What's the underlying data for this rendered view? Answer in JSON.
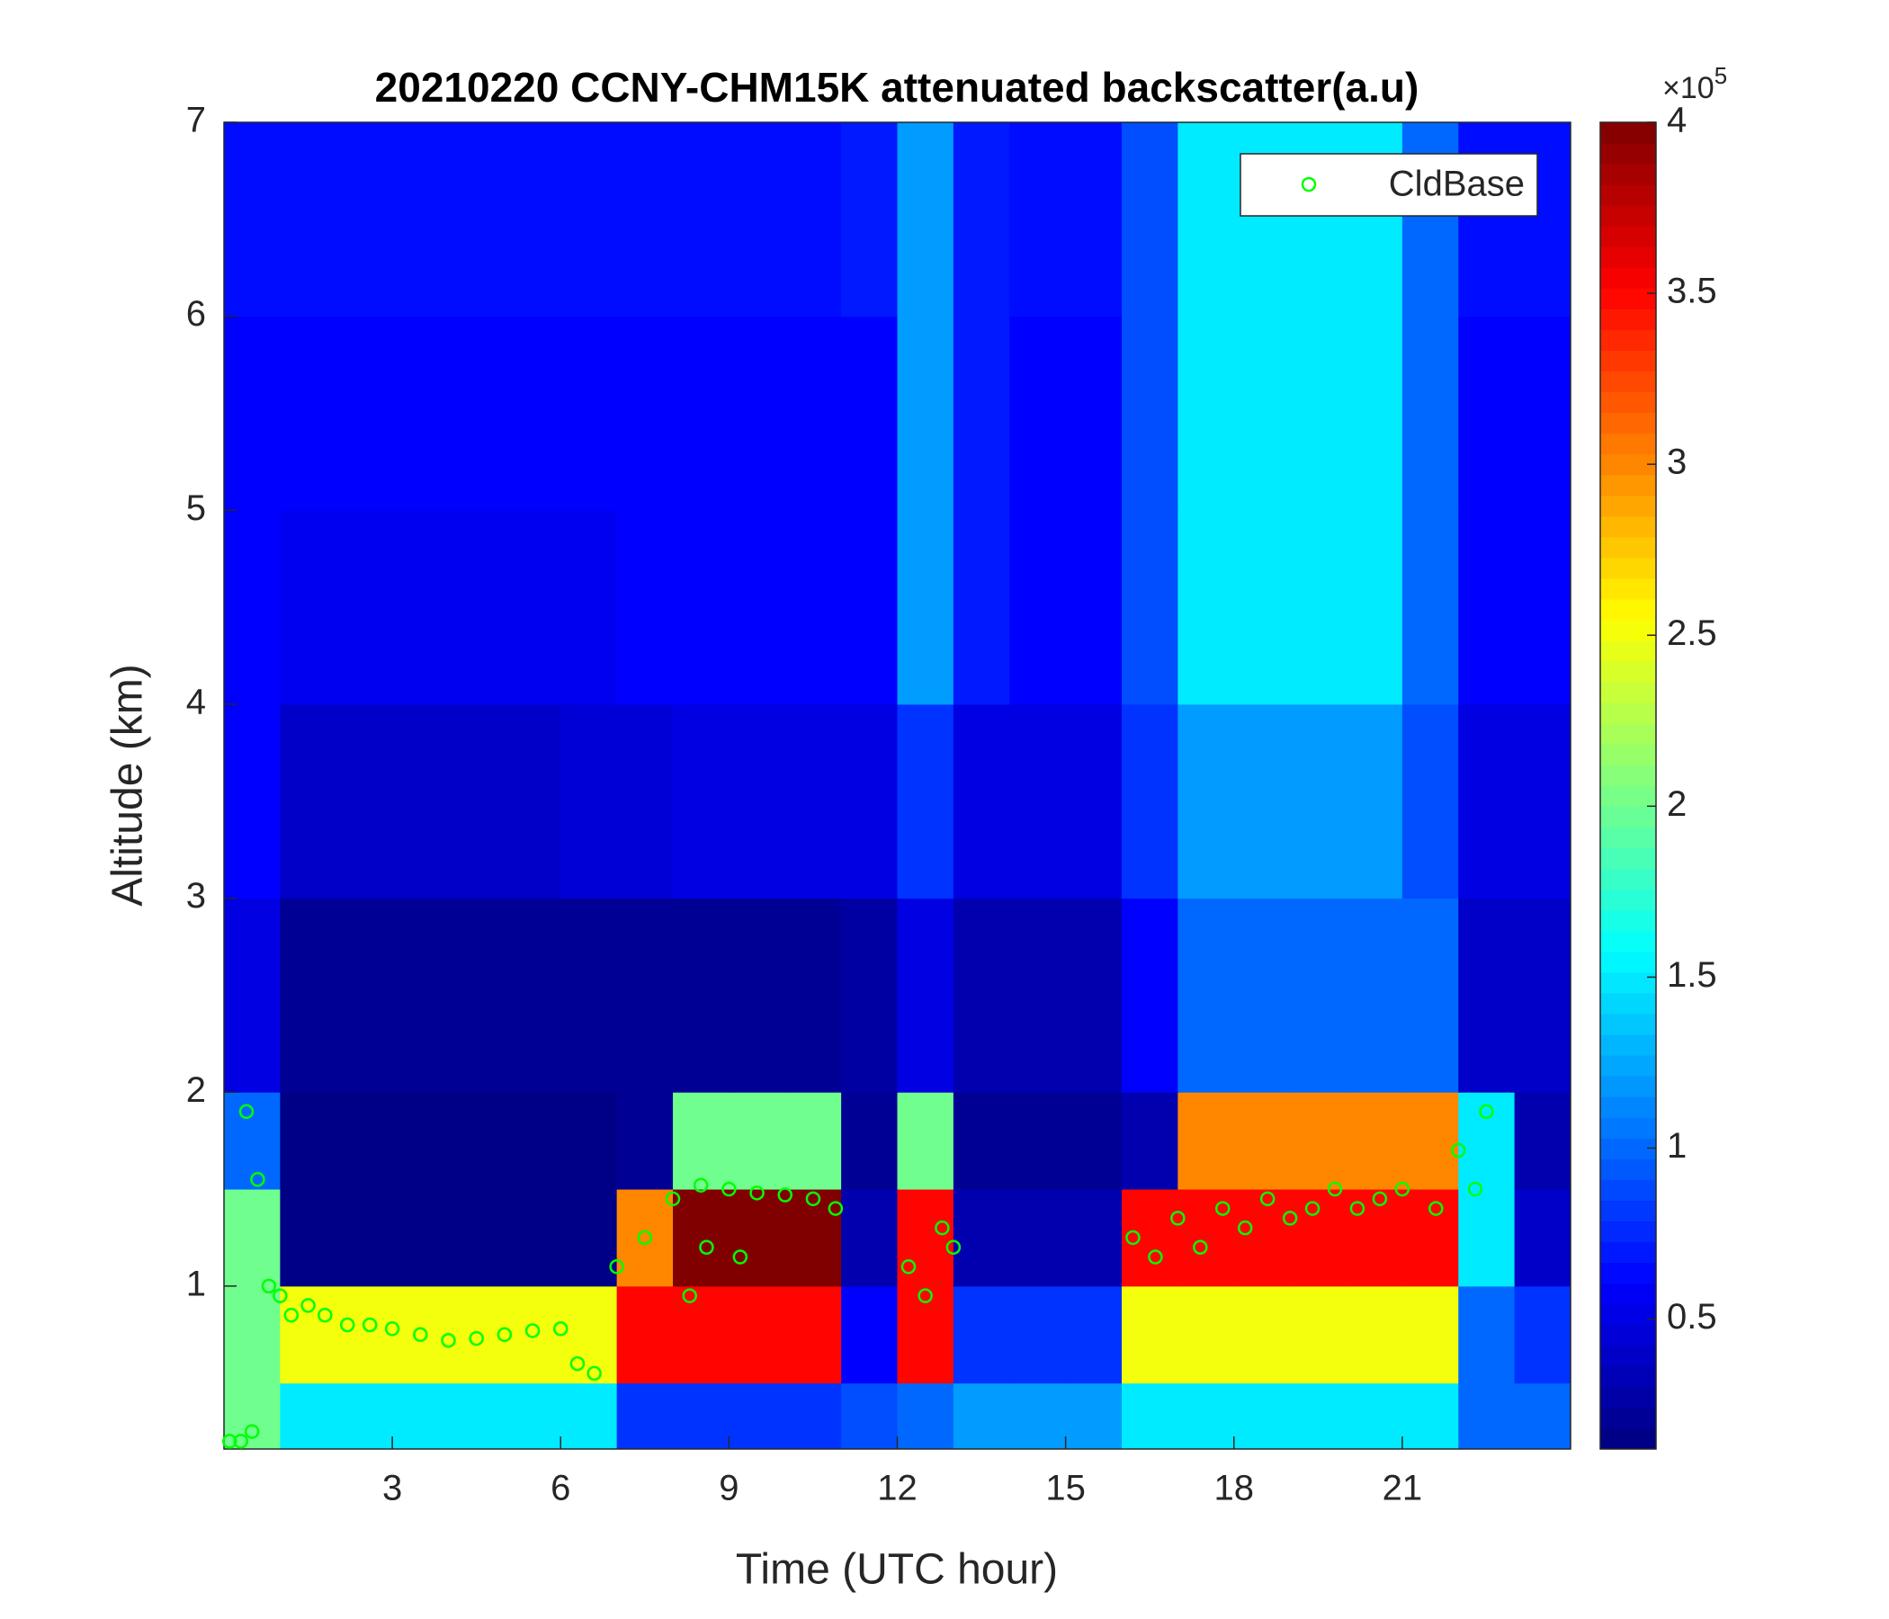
{
  "chart_data": {
    "type": "heatmap",
    "title": "20210220 CCNY-CHM15K attenuated backscatter(a.u)",
    "x_label": "Time (UTC hour)",
    "y_label": "Altitude (km)",
    "xlim": [
      0,
      24
    ],
    "ylim": [
      0.16,
      7
    ],
    "xticks": [
      3,
      6,
      9,
      12,
      15,
      18,
      21
    ],
    "yticks": [
      1,
      2,
      3,
      4,
      5,
      6,
      7
    ],
    "x_edges": [
      0,
      1,
      2,
      3,
      4,
      5,
      6,
      7,
      8,
      9,
      10,
      11,
      12,
      13,
      14,
      15,
      16,
      17,
      18,
      19,
      20,
      21,
      22,
      23,
      24
    ],
    "y_edges": [
      0.16,
      0.5,
      1,
      1.5,
      2,
      3,
      4,
      5,
      6,
      7
    ],
    "z": [
      [
        2,
        1.5,
        1.5,
        1.5,
        1.5,
        1.5,
        1.5,
        0.8,
        0.8,
        0.8,
        0.8,
        0.9,
        1,
        1.2,
        1.2,
        1.2,
        1.5,
        1.5,
        1.5,
        1.5,
        1.5,
        1.5,
        1,
        1
      ],
      [
        2,
        2.5,
        2.5,
        2.5,
        2.5,
        2.5,
        2.5,
        3.5,
        3.5,
        3.5,
        3.5,
        0.6,
        3.5,
        0.8,
        0.8,
        0.8,
        2.5,
        2.5,
        2.5,
        2.5,
        2.5,
        2.5,
        1,
        0.8
      ],
      [
        2,
        0.15,
        0.15,
        0.15,
        0.15,
        0.15,
        0.15,
        3,
        4,
        4,
        4,
        0.3,
        3.5,
        0.3,
        0.3,
        0.3,
        3.5,
        3.5,
        3.5,
        3.5,
        3.5,
        3.5,
        1.5,
        0.4
      ],
      [
        1,
        0.15,
        0.15,
        0.15,
        0.15,
        0.15,
        0.15,
        0.2,
        2,
        2,
        2,
        0.2,
        2,
        0.2,
        0.2,
        0.2,
        0.3,
        3,
        3,
        3,
        3,
        3,
        1.5,
        0.3
      ],
      [
        0.5,
        0.2,
        0.2,
        0.2,
        0.2,
        0.2,
        0.2,
        0.2,
        0.2,
        0.2,
        0.2,
        0.25,
        0.5,
        0.3,
        0.3,
        0.3,
        0.6,
        1,
        1,
        1,
        1,
        1,
        0.4,
        0.4
      ],
      [
        0.6,
        0.4,
        0.4,
        0.4,
        0.4,
        0.4,
        0.45,
        0.45,
        0.5,
        0.5,
        0.5,
        0.5,
        0.8,
        0.5,
        0.5,
        0.5,
        0.8,
        1.2,
        1.2,
        1.2,
        1.2,
        0.9,
        0.5,
        0.5
      ],
      [
        0.6,
        0.55,
        0.55,
        0.55,
        0.55,
        0.55,
        0.55,
        0.6,
        0.6,
        0.6,
        0.6,
        0.6,
        1.2,
        0.7,
        0.6,
        0.6,
        0.9,
        1.5,
        1.5,
        1.5,
        1.5,
        1,
        0.6,
        0.6
      ],
      [
        0.6,
        0.6,
        0.6,
        0.6,
        0.6,
        0.6,
        0.6,
        0.6,
        0.6,
        0.6,
        0.6,
        0.6,
        1.2,
        0.7,
        0.6,
        0.6,
        0.9,
        1.5,
        1.5,
        1.5,
        1.5,
        1,
        0.6,
        0.6
      ],
      [
        0.65,
        0.65,
        0.65,
        0.65,
        0.65,
        0.65,
        0.65,
        0.65,
        0.65,
        0.65,
        0.65,
        0.7,
        1.2,
        0.7,
        0.65,
        0.65,
        0.9,
        1.5,
        1.5,
        1.5,
        1.5,
        1,
        0.65,
        0.65
      ]
    ],
    "clim": [
      0.12,
      4
    ],
    "cticks": [
      0.5,
      1,
      1.5,
      2,
      2.5,
      3,
      3.5,
      4
    ],
    "colorbar_multiplier": "×10",
    "colorbar_exponent": "5",
    "colormap": "jet",
    "series": [
      {
        "name": "CldBase",
        "color": "#00ff00",
        "x": [
          0.1,
          0.3,
          0.5,
          0.4,
          0.6,
          0.8,
          1.0,
          1.2,
          1.5,
          1.8,
          2.2,
          2.6,
          3,
          3.5,
          4,
          4.5,
          5,
          5.5,
          6,
          6.3,
          6.6,
          7,
          7.5,
          8,
          8.5,
          9,
          9.5,
          10,
          10.5,
          10.9,
          8.6,
          9.2,
          8.3,
          12.2,
          12.5,
          12.8,
          13.0,
          16.2,
          16.6,
          17,
          17.4,
          17.8,
          18.2,
          18.6,
          19,
          19.4,
          19.8,
          20.2,
          20.6,
          21,
          21.6,
          22,
          22.3,
          22.5
        ],
        "values": [
          0.2,
          0.2,
          0.25,
          1.9,
          1.55,
          1.0,
          0.95,
          0.85,
          0.9,
          0.85,
          0.8,
          0.8,
          0.78,
          0.75,
          0.72,
          0.73,
          0.75,
          0.77,
          0.78,
          0.6,
          0.55,
          1.1,
          1.25,
          1.45,
          1.52,
          1.5,
          1.48,
          1.47,
          1.45,
          1.4,
          1.2,
          1.15,
          0.95,
          1.1,
          0.95,
          1.3,
          1.2,
          1.25,
          1.15,
          1.35,
          1.2,
          1.4,
          1.3,
          1.45,
          1.35,
          1.4,
          1.5,
          1.4,
          1.45,
          1.5,
          1.4,
          1.7,
          1.5,
          1.9
        ]
      }
    ],
    "legend": "upper right"
  }
}
